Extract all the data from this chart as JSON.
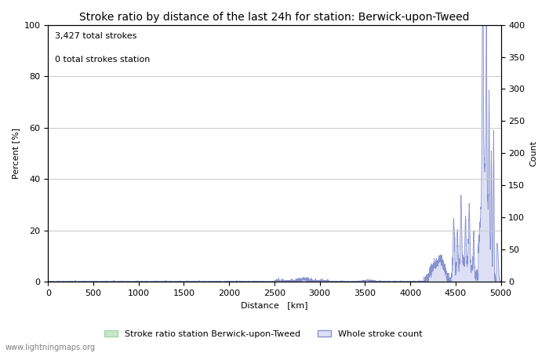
{
  "title": "Stroke ratio by distance of the last 24h for station: Berwick-upon-Tweed",
  "annotation_line1": "3,427 total strokes",
  "annotation_line2": "0 total strokes station",
  "xlabel": "Distance   [km]",
  "ylabel_left": "Percent [%]",
  "ylabel_right": "Count",
  "watermark": "www.lightningmaps.org",
  "xlim": [
    0,
    5000
  ],
  "ylim_left": [
    0,
    100
  ],
  "ylim_right": [
    0,
    400
  ],
  "yticks_left": [
    0,
    20,
    40,
    60,
    80,
    100
  ],
  "yticks_right": [
    0,
    50,
    100,
    150,
    200,
    250,
    300,
    350,
    400
  ],
  "xticks": [
    0,
    500,
    1000,
    1500,
    2000,
    2500,
    3000,
    3500,
    4000,
    4500,
    5000
  ],
  "legend_label_green": "Stroke ratio station Berwick-upon-Tweed",
  "legend_label_blue": "Whole stroke count",
  "fill_green_color": "#c8e6c9",
  "fill_green_edge": "#a5d6a7",
  "fill_blue_color": "#dde0f5",
  "line_blue_color": "#8892d0",
  "background_color": "#ffffff",
  "grid_color": "#c8c8c8",
  "title_fontsize": 10,
  "axis_fontsize": 8,
  "tick_fontsize": 8,
  "annotation_fontsize": 8
}
